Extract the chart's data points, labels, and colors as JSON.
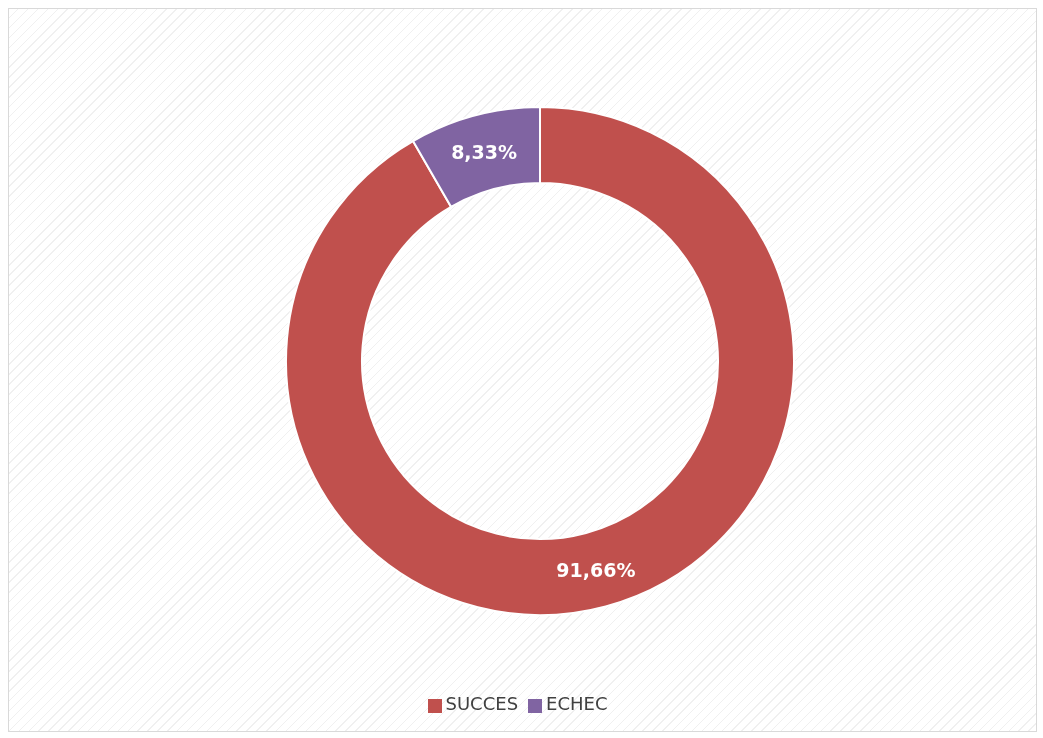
{
  "chart_data": {
    "type": "donut",
    "categories": [
      "SUCCES",
      "ECHEC"
    ],
    "values": [
      91.66,
      8.33
    ],
    "colors": [
      "#c0504d",
      "#8064a2"
    ],
    "value_labels": [
      "91,66%",
      "8,33%"
    ],
    "legend": "bottom"
  }
}
